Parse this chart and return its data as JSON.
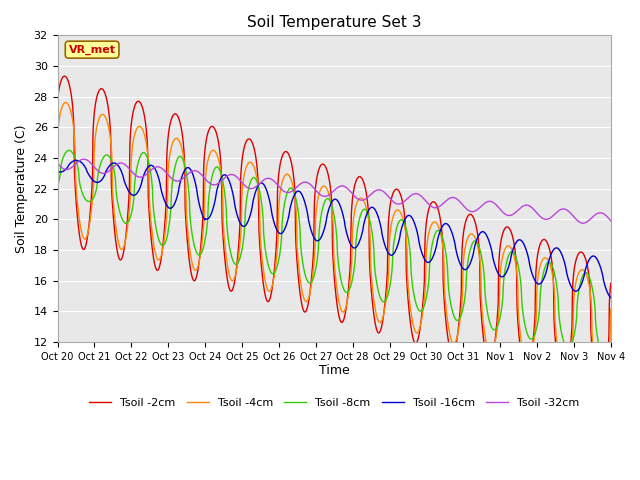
{
  "title": "Soil Temperature Set 3",
  "xlabel": "Time",
  "ylabel": "Soil Temperature (C)",
  "ylim": [
    12,
    32
  ],
  "yticks": [
    12,
    14,
    16,
    18,
    20,
    22,
    24,
    26,
    28,
    30,
    32
  ],
  "xtick_labels": [
    "Oct 20",
    "Oct 21",
    "Oct 22",
    "Oct 23",
    "Oct 24",
    "Oct 25",
    "Oct 26",
    "Oct 27",
    "Oct 28",
    "Oct 29",
    "Oct 30",
    "Oct 31",
    "Nov 1",
    "Nov 2",
    "Nov 3",
    "Nov 4"
  ],
  "colors": {
    "Tsoil -2cm": "#dd0000",
    "Tsoil -4cm": "#ff8800",
    "Tsoil -8cm": "#33cc00",
    "Tsoil -16cm": "#0000cc",
    "Tsoil -32cm": "#bb44dd"
  },
  "annotation_text": "VR_met",
  "annotation_color": "#cc0000",
  "annotation_bg": "#ffff99",
  "fig_bg": "#ffffff",
  "plot_bg": "#e8e8e8",
  "title_fontsize": 11,
  "grid_color": "#ffffff",
  "n_days": 15
}
